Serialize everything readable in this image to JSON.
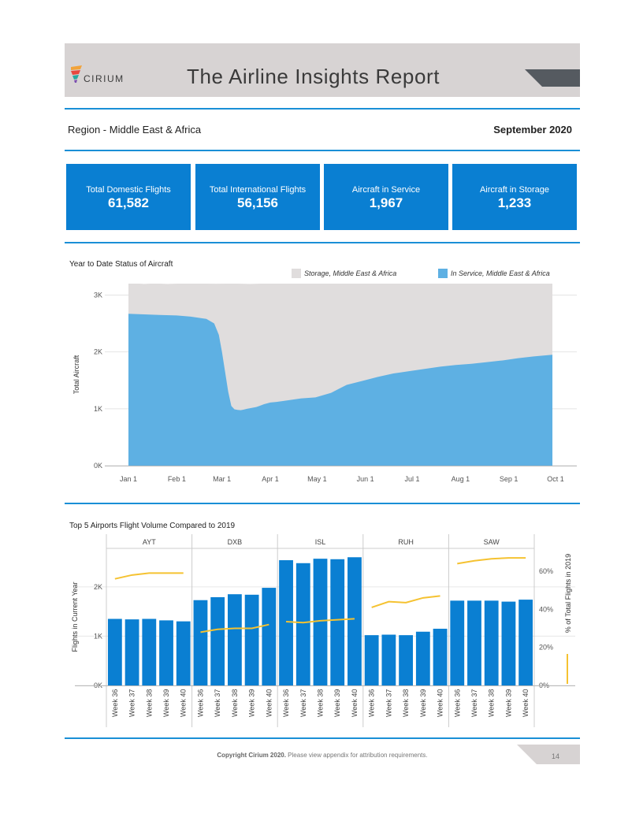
{
  "header": {
    "brand": "CIRIUM",
    "title": "The Airline Insights Report",
    "region": "Region - Middle East & Africa",
    "date": "September 2020"
  },
  "kpis": [
    {
      "label": "Total Domestic Flights",
      "value": "61,582"
    },
    {
      "label": "Total International Flights",
      "value": "56,156"
    },
    {
      "label": "Aircraft in Service",
      "value": "1,967"
    },
    {
      "label": "Aircraft in Storage",
      "value": "1,233"
    }
  ],
  "colors": {
    "accent": "#1a8fd6",
    "kpi": "#0a7fd2",
    "storage": "#e0dddd",
    "in_service": "#5eb0e3",
    "bars": "#0a7fd2",
    "line": "#f5c231"
  },
  "chart_data": [
    {
      "type": "area",
      "title": "Year to Date Status of Aircraft",
      "ylabel": "Total Aircraft",
      "ylim": [
        0,
        3200
      ],
      "yticks": [
        "0K",
        "1K",
        "2K",
        "3K"
      ],
      "xticks": [
        "Jan 1",
        "Feb 1",
        "Mar 1",
        "Apr 1",
        "May 1",
        "Jun 1",
        "Jul 1",
        "Aug 1",
        "Sep 1",
        "Oct 1"
      ],
      "legend": [
        "Storage, Middle East & Africa",
        "In Service, Middle East & Africa"
      ],
      "series": [
        {
          "name": "Total (Storage + In Service)",
          "x": [
            0,
            3,
            7,
            10,
            14,
            20,
            25,
            31,
            40,
            50,
            56,
            63,
            70,
            78,
            85,
            91,
            95,
            100,
            110,
            120,
            130,
            140,
            150,
            160,
            170,
            180,
            190,
            200,
            210,
            220,
            230,
            240,
            250,
            260,
            272
          ],
          "values": [
            3200,
            3200,
            3200,
            3195,
            3200,
            3200,
            3195,
            3200,
            3200,
            3200,
            3198,
            3200,
            3200,
            3195,
            3200,
            3200,
            3200,
            3200,
            3200,
            3200,
            3200,
            3200,
            3200,
            3200,
            3200,
            3200,
            3200,
            3200,
            3200,
            3200,
            3200,
            3200,
            3200,
            3200,
            3200
          ]
        },
        {
          "name": "In Service, Middle East & Africa",
          "x": [
            0,
            10,
            20,
            31,
            40,
            50,
            55,
            58,
            60,
            62,
            64,
            66,
            68,
            70,
            72,
            74,
            76,
            78,
            80,
            82,
            84,
            87,
            91,
            95,
            100,
            110,
            120,
            130,
            135,
            140,
            150,
            160,
            170,
            180,
            190,
            200,
            210,
            220,
            230,
            240,
            250,
            260,
            272
          ],
          "values": [
            2670,
            2660,
            2650,
            2640,
            2620,
            2580,
            2500,
            2300,
            2000,
            1650,
            1300,
            1050,
            990,
            980,
            975,
            985,
            1000,
            1010,
            1020,
            1030,
            1050,
            1080,
            1110,
            1120,
            1140,
            1180,
            1200,
            1280,
            1350,
            1420,
            1490,
            1560,
            1620,
            1660,
            1700,
            1740,
            1770,
            1790,
            1820,
            1850,
            1890,
            1920,
            1950
          ]
        }
      ]
    },
    {
      "type": "bar",
      "title": "Top 5 Airports Flight Volume Compared to 2019",
      "ylabel": "Flights in Current Year",
      "y2label": "% of Total Flights in 2019",
      "ylim": [
        0,
        2780
      ],
      "yticks": [
        "0K",
        "1K",
        "2K"
      ],
      "y2lim": [
        0,
        72
      ],
      "y2ticks": [
        "0%",
        "20%",
        "40%",
        "60%"
      ],
      "categories": [
        "Week 36",
        "Week 37",
        "Week 38",
        "Week 39",
        "Week 40"
      ],
      "series": [
        {
          "name": "AYT",
          "values": [
            1350,
            1340,
            1350,
            1320,
            1300
          ],
          "pct": [
            56,
            58,
            59,
            59,
            59
          ]
        },
        {
          "name": "DXB",
          "values": [
            1730,
            1790,
            1850,
            1840,
            1980
          ],
          "pct": [
            28,
            29.5,
            30,
            30,
            32
          ]
        },
        {
          "name": "ISL",
          "values": [
            2540,
            2480,
            2570,
            2560,
            2600
          ],
          "pct": [
            33.5,
            33,
            34,
            34.5,
            35
          ]
        },
        {
          "name": "RUH",
          "values": [
            1020,
            1030,
            1020,
            1090,
            1150
          ],
          "pct": [
            41,
            44,
            43.5,
            46,
            47
          ]
        },
        {
          "name": "SAW",
          "values": [
            1720,
            1720,
            1720,
            1700,
            1740
          ],
          "pct": [
            64,
            65.5,
            66.5,
            67,
            67
          ]
        }
      ]
    }
  ],
  "footer": {
    "copyright": "Copyright Cirium 2020.",
    "attribution": " Please view appendix for attribution requirements.",
    "page": "14"
  }
}
